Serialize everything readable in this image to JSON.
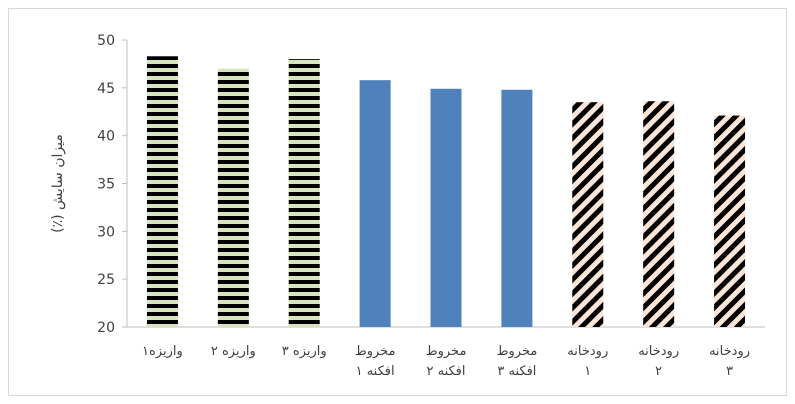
{
  "chart_data": {
    "type": "bar",
    "title": "",
    "xlabel": "",
    "ylabel": "میزان سایش (٪)",
    "ylim": [
      20,
      50
    ],
    "yticks": [
      20,
      25,
      30,
      35,
      40,
      45,
      50
    ],
    "grid": false,
    "legend": "none",
    "categories": [
      [
        "واریزه۱"
      ],
      [
        "واریزه ۲"
      ],
      [
        "واریزه ۳"
      ],
      [
        "مخروط",
        "افکنه ۱"
      ],
      [
        "مخروط",
        "افکنه ۲"
      ],
      [
        "مخروط",
        "افکنه ۳"
      ],
      [
        "رودخانه",
        "۱"
      ],
      [
        "رودخانه",
        "۲"
      ],
      [
        "رودخانه",
        "۳"
      ]
    ],
    "values": [
      48.3,
      47.0,
      48.0,
      45.8,
      44.9,
      44.8,
      43.5,
      43.6,
      42.1
    ],
    "styles": [
      "hstripe",
      "hstripe",
      "hstripe",
      "solid",
      "solid",
      "solid",
      "diag",
      "diag",
      "diag"
    ],
    "colors": {
      "hstripe_fg": "#000000",
      "hstripe_bg": "#d7e4bd",
      "solid": "#4f81bd",
      "diag_fg": "#000000",
      "diag_bg": "#fbe5d6",
      "axis": "#bfbfbf"
    }
  }
}
